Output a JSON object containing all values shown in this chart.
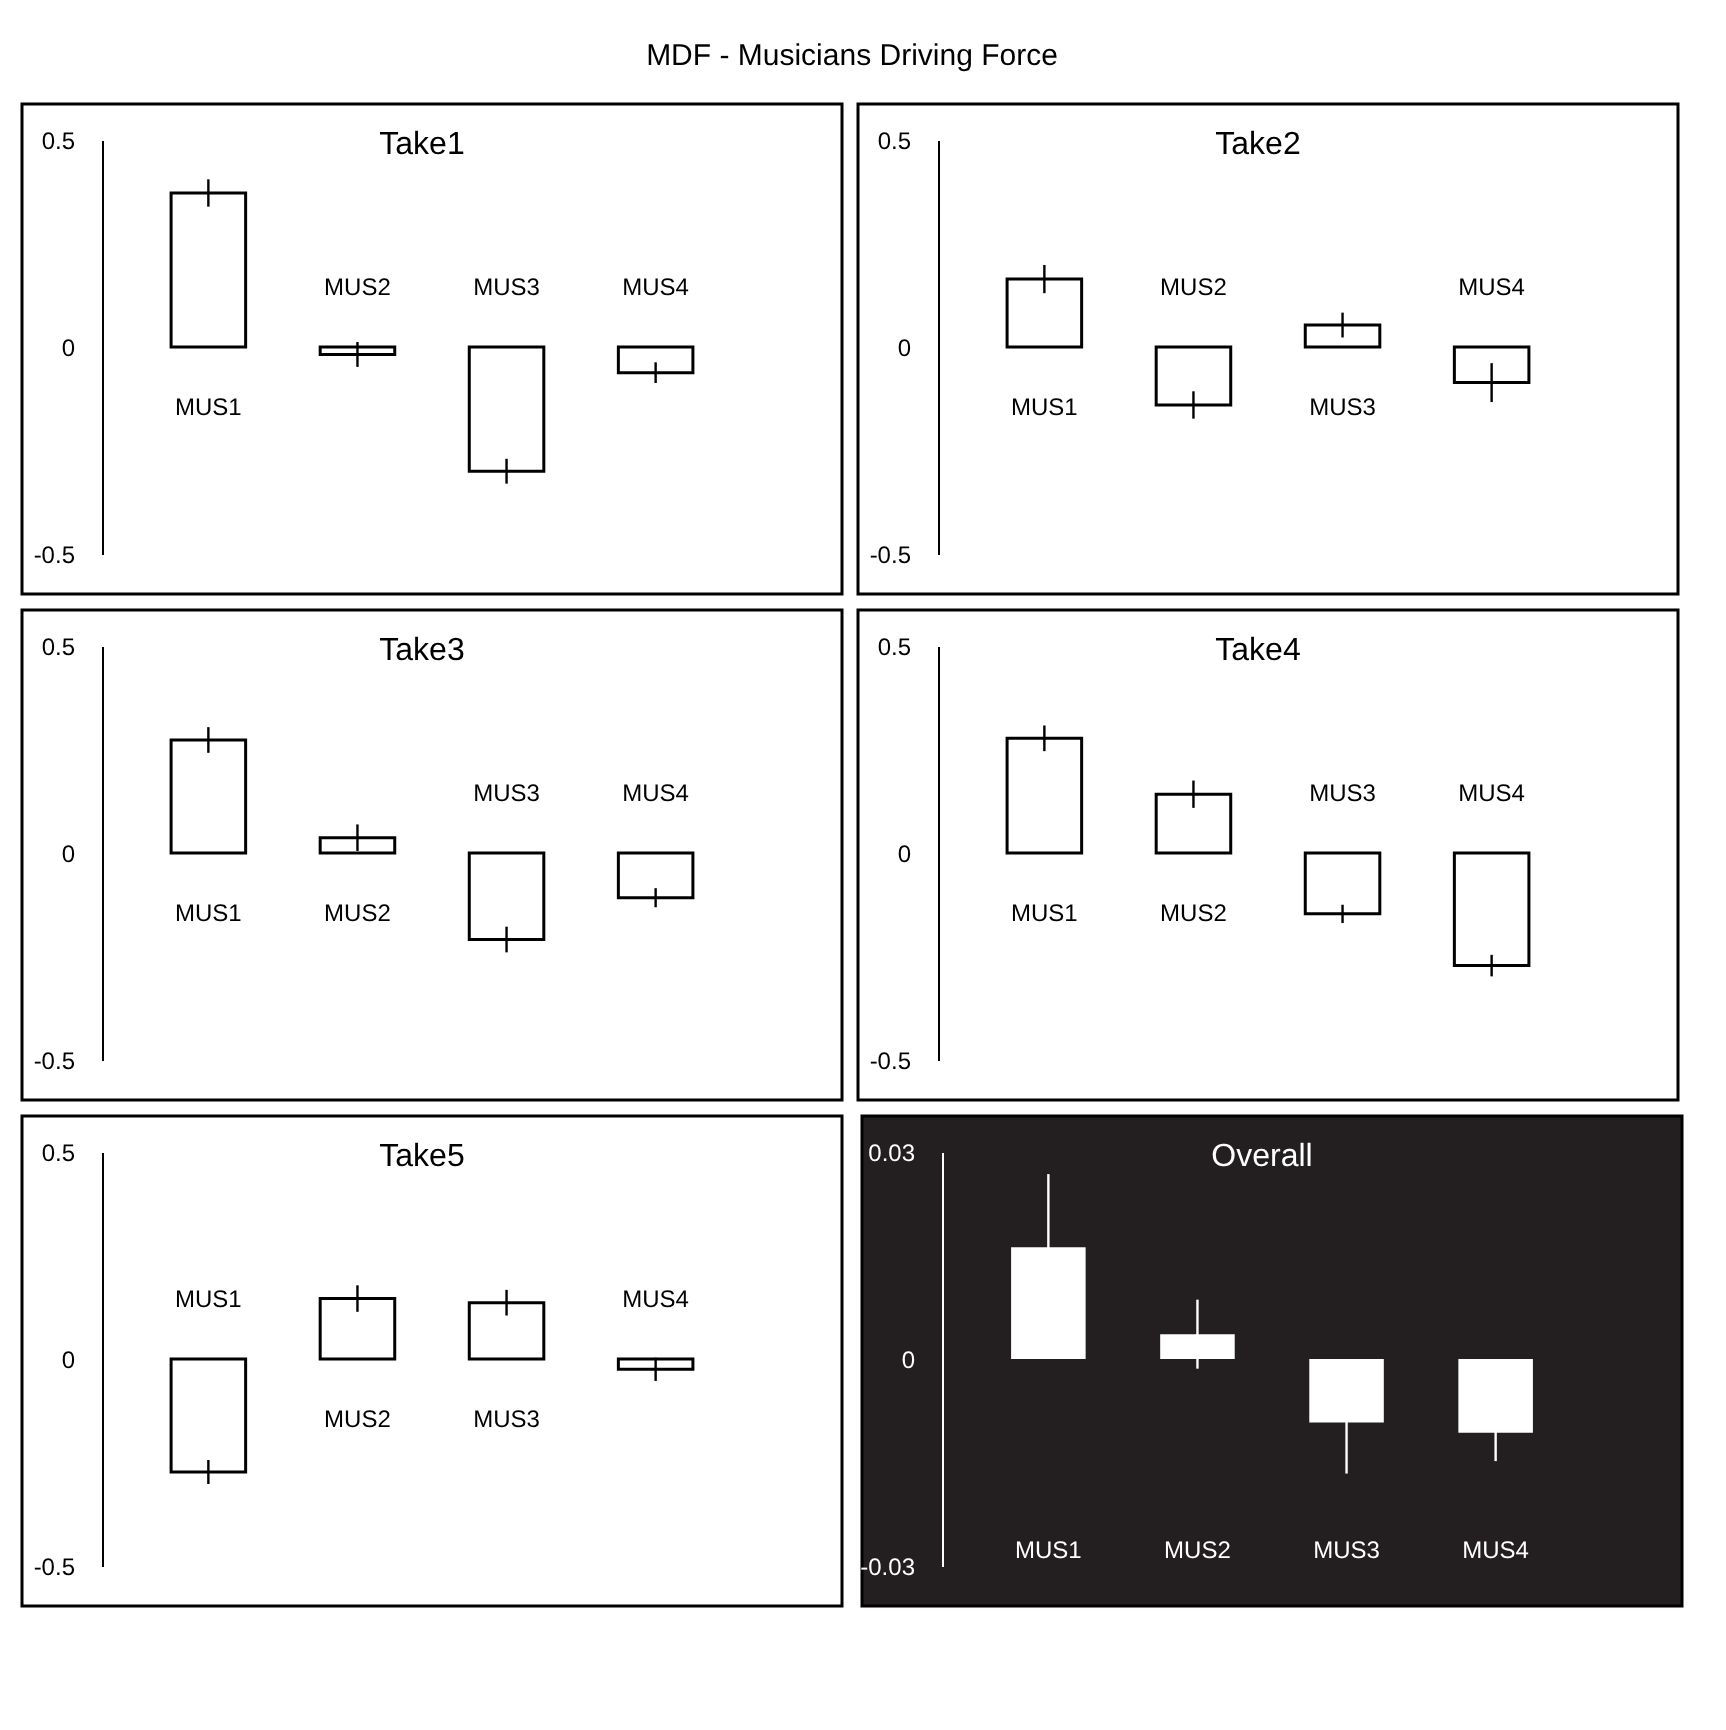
{
  "chart_data": [
    {
      "type": "bar",
      "title": "Take1",
      "annotations": [
        "MDF - Musicians Driving Force"
      ],
      "categories": [
        "MUS1",
        "MUS2",
        "MUS3",
        "MUS4"
      ],
      "values": [
        0.372,
        -0.018,
        -0.3,
        -0.062
      ],
      "errors": [
        0.033,
        0.03,
        0.03,
        0.025
      ],
      "color": "#ffffff",
      "ylim": [
        -0.5,
        0.5
      ],
      "yticks": [
        -0.5,
        0,
        0.5
      ],
      "grid": false
    },
    {
      "type": "bar",
      "title": "Take2",
      "categories": [
        "MUS1",
        "MUS2",
        "MUS3",
        "MUS4"
      ],
      "values": [
        0.164,
        -0.14,
        0.053,
        -0.086
      ],
      "errors": [
        0.034,
        0.033,
        0.03,
        0.047
      ],
      "color": "#ffffff",
      "ylim": [
        -0.5,
        0.5
      ],
      "yticks": [
        -0.5,
        0,
        0.5
      ],
      "grid": false
    },
    {
      "type": "bar",
      "title": "Take3",
      "categories": [
        "MUS1",
        "MUS2",
        "MUS3",
        "MUS4"
      ],
      "values": [
        0.273,
        0.037,
        -0.209,
        -0.108
      ],
      "errors": [
        0.031,
        0.032,
        0.031,
        0.023
      ],
      "color": "#ffffff",
      "ylim": [
        -0.5,
        0.5
      ],
      "yticks": [
        -0.5,
        0,
        0.5
      ],
      "grid": false
    },
    {
      "type": "bar",
      "title": "Take4",
      "categories": [
        "MUS1",
        "MUS2",
        "MUS3",
        "MUS4"
      ],
      "values": [
        0.277,
        0.142,
        -0.147,
        -0.272
      ],
      "errors": [
        0.031,
        0.033,
        0.022,
        0.026
      ],
      "color": "#ffffff",
      "ylim": [
        -0.5,
        0.5
      ],
      "yticks": [
        -0.5,
        0,
        0.5
      ],
      "grid": false
    },
    {
      "type": "bar",
      "title": "Take5",
      "categories": [
        "MUS1",
        "MUS2",
        "MUS3",
        "MUS4"
      ],
      "values": [
        -0.273,
        0.146,
        0.136,
        -0.025
      ],
      "errors": [
        0.029,
        0.032,
        0.031,
        0.028
      ],
      "color": "#ffffff",
      "ylim": [
        -0.5,
        0.5
      ],
      "yticks": [
        -0.5,
        0,
        0.5
      ],
      "grid": false
    },
    {
      "type": "bar",
      "title": "Overall",
      "categories": [
        "MUS1",
        "MUS2",
        "MUS3",
        "MUS4"
      ],
      "values": [
        0.0162,
        0.0036,
        -0.0092,
        -0.0107
      ],
      "errors": [
        0.0106,
        0.005,
        0.0074,
        0.0041
      ],
      "color": "#ffffff",
      "ylim": [
        -0.03,
        0.03
      ],
      "yticks": [
        -0.03,
        0,
        0.03
      ],
      "grid": false
    }
  ]
}
